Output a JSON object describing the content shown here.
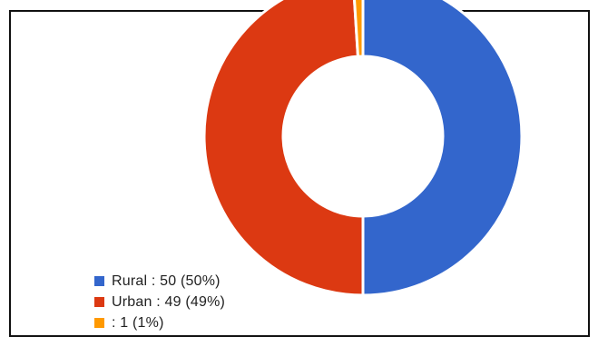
{
  "chart_data": {
    "type": "pie",
    "donut": true,
    "title": "",
    "categories": [
      "Rural",
      "Urban",
      ""
    ],
    "values": [
      50,
      49,
      1
    ],
    "percents": [
      "50%",
      "49%",
      "1%"
    ],
    "colors": [
      "#3366CC",
      "#DC3912",
      "#FF9900"
    ],
    "legend_position": "bottom-left",
    "legend": [
      {
        "label": "Rural : 50 (50%)",
        "color": "#3366CC"
      },
      {
        "label": "Urban : 49 (49%)",
        "color": "#DC3912"
      },
      {
        "label": " : 1 (1%)",
        "color": "#FF9900"
      }
    ]
  }
}
